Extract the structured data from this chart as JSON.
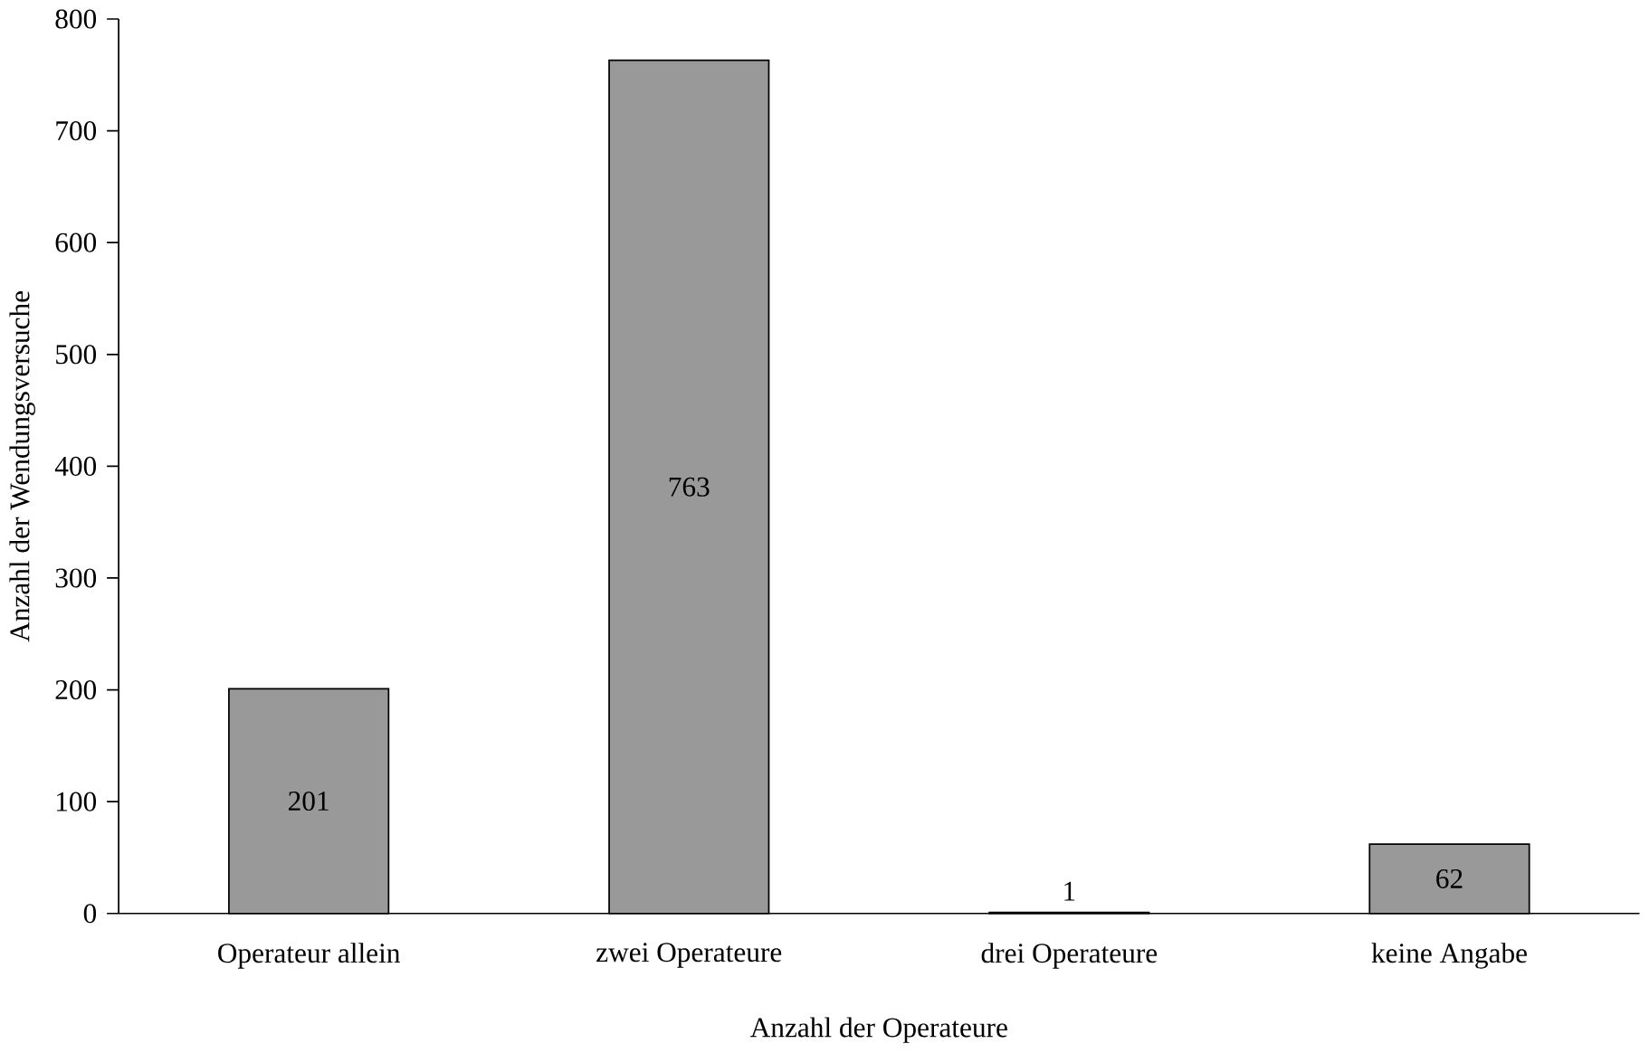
{
  "chart_data": {
    "type": "bar",
    "xlabel": "Anzahl der Operateure",
    "ylabel": "Anzahl der Wendungsversuche",
    "categories": [
      "Operateur allein",
      "zwei Operateure",
      "drei Operateure",
      "keine Angabe"
    ],
    "values": [
      201,
      763,
      1,
      62
    ],
    "color": "#999999",
    "ylim": [
      0,
      800
    ],
    "yticks": [
      0,
      100,
      200,
      300,
      400,
      500,
      600,
      700,
      800
    ],
    "data_labels": true,
    "grid": false
  }
}
